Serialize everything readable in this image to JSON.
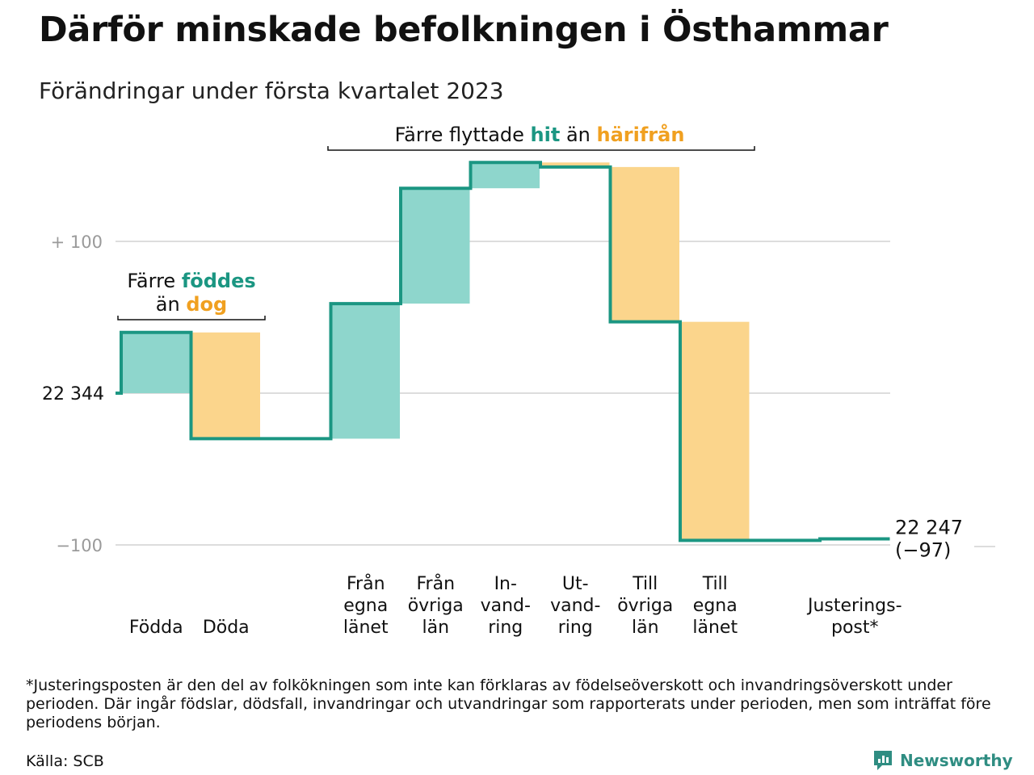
{
  "title": "Därför minskade befolkningen i Östhammar",
  "subtitle": "Förändringar under första kvartalet 2023",
  "colors": {
    "inflow": "#8ed6cc",
    "outflow": "#fbd58c",
    "line": "#1b9682",
    "teal_text": "#1b9682",
    "orange_text": "#f0a020",
    "grid": "#dddddd",
    "axis_text": "#9a9a9a"
  },
  "chart_data": {
    "type": "waterfall",
    "start_value": 22344,
    "start_label": "22 344",
    "end_value": 22247,
    "end_label": "22 247",
    "end_change_label": "(−97)",
    "yticks": [
      {
        "value": 100,
        "label": "+ 100"
      },
      {
        "value": 0,
        "label": ""
      },
      {
        "value": -100,
        "label": "−100"
      }
    ],
    "ylim": [
      -100,
      155
    ],
    "steps": [
      {
        "label": [
          "",
          "",
          "Födda"
        ],
        "delta": 40,
        "kind": "inflow"
      },
      {
        "label": [
          "",
          "",
          "Döda"
        ],
        "delta": -70,
        "kind": "outflow"
      },
      {
        "label": [
          "",
          "",
          ""
        ],
        "delta": 0,
        "kind": "gap"
      },
      {
        "label": [
          "Från",
          "egna",
          "länet"
        ],
        "delta": 89,
        "kind": "inflow"
      },
      {
        "label": [
          "Från",
          "övriga",
          "län"
        ],
        "delta": 76,
        "kind": "inflow"
      },
      {
        "label": [
          "In-",
          "vand-",
          "ring"
        ],
        "delta": 17,
        "kind": "inflow"
      },
      {
        "label": [
          "Ut-",
          "vand-",
          "ring"
        ],
        "delta": -3,
        "kind": "outflow"
      },
      {
        "label": [
          "Till",
          "övriga",
          "län"
        ],
        "delta": -102,
        "kind": "outflow"
      },
      {
        "label": [
          "Till",
          "egna",
          "länet"
        ],
        "delta": -144,
        "kind": "outflow"
      },
      {
        "label": [
          "",
          "",
          ""
        ],
        "delta": 0,
        "kind": "gap"
      },
      {
        "label": [
          "",
          "Justerings-",
          "post*"
        ],
        "delta": 1,
        "kind": "adjust"
      }
    ],
    "annotations": [
      {
        "lines": [
          [
            {
              "text": "Färre ",
              "style": "plain"
            },
            {
              "text": "föddes",
              "style": "teal"
            }
          ],
          [
            {
              "text": "än ",
              "style": "plain"
            },
            {
              "text": "dog",
              "style": "orange"
            }
          ]
        ]
      },
      {
        "lines": [
          [
            {
              "text": "Färre flyttade ",
              "style": "plain"
            },
            {
              "text": "hit",
              "style": "teal"
            },
            {
              "text": " än ",
              "style": "plain"
            },
            {
              "text": "härifrån",
              "style": "orange"
            }
          ]
        ]
      }
    ]
  },
  "footnote": "*Justeringsposten är den del av folkökningen som inte kan förklaras av födelseöverskott och invandringsöverskott under perioden. Där ingår födslar, dödsfall, invandringar och utvandringar som rapporterats under perioden, men som inträffat före periodens början.",
  "source": "Källa: SCB",
  "brand": {
    "name": "Newsworthy",
    "icon": "newsworthy-logo-icon"
  }
}
